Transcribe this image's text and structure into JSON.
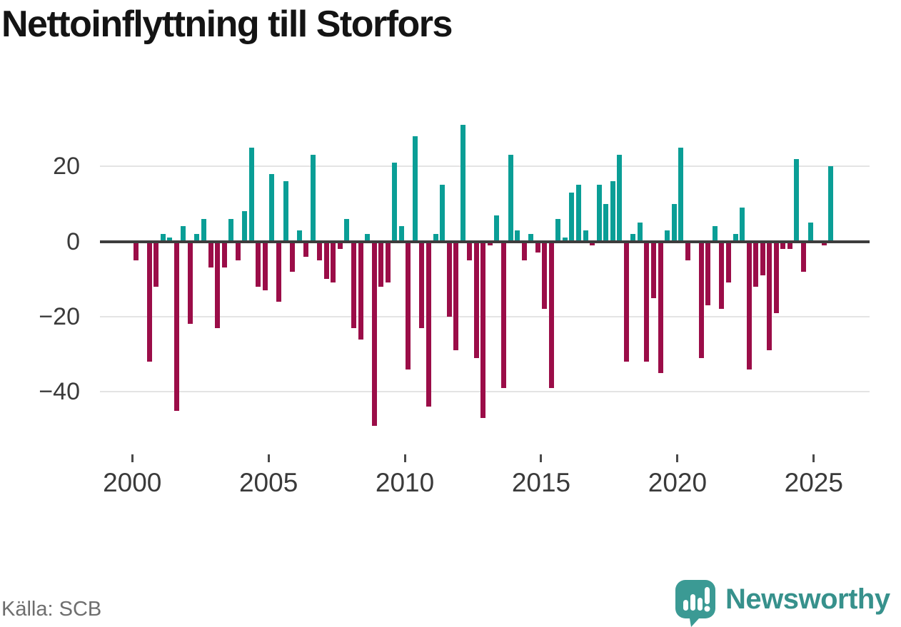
{
  "title": "Nettoinflyttning till Storfors",
  "source": "Källa: SCB",
  "brand": {
    "name": "Newsworthy",
    "text_color": "#37918c",
    "icon_color": "#3b9a94",
    "icon": "newsworthy-bubble-chart-icon"
  },
  "colors": {
    "positive": "#0a9e96",
    "negative": "#9b0d48",
    "grid": "#e4e4e4",
    "zero_line": "#3d3d3d",
    "axis_text": "#3a3a3a"
  },
  "chart_data": {
    "type": "bar",
    "title": "Nettoinflyttning till Storfors",
    "x_unit": "quarter",
    "start_quarter": "2000-Q1",
    "end_quarter": "2025-Q3",
    "xticks": [
      2000,
      2005,
      2010,
      2015,
      2020,
      2025
    ],
    "yticks": [
      20,
      0,
      -20,
      -40
    ],
    "ylim": [
      -50,
      32
    ],
    "grid": "horizontal",
    "legend": "none",
    "values": [
      -5,
      0,
      -32,
      -12,
      2,
      1,
      -45,
      4,
      -22,
      2,
      6,
      -7,
      -23,
      -7,
      6,
      -5,
      8,
      25,
      -12,
      -13,
      18,
      -16,
      16,
      -8,
      3,
      -4,
      23,
      -5,
      -10,
      -11,
      -2,
      6,
      -23,
      -26,
      2,
      -49,
      -12,
      -11,
      21,
      4,
      -34,
      28,
      -23,
      -44,
      2,
      15,
      -20,
      -29,
      31,
      -5,
      -31,
      -47,
      -1,
      7,
      -39,
      23,
      3,
      -5,
      2,
      -3,
      -18,
      -39,
      6,
      1,
      13,
      15,
      3,
      -1,
      15,
      10,
      16,
      23,
      -32,
      2,
      5,
      -32,
      -15,
      -35,
      3,
      10,
      25,
      -5,
      0,
      -31,
      -17,
      4,
      -18,
      -11,
      2,
      9,
      -34,
      -12,
      -9,
      -29,
      -19,
      -2,
      -2,
      22,
      -8,
      5,
      0,
      -1,
      20
    ]
  }
}
